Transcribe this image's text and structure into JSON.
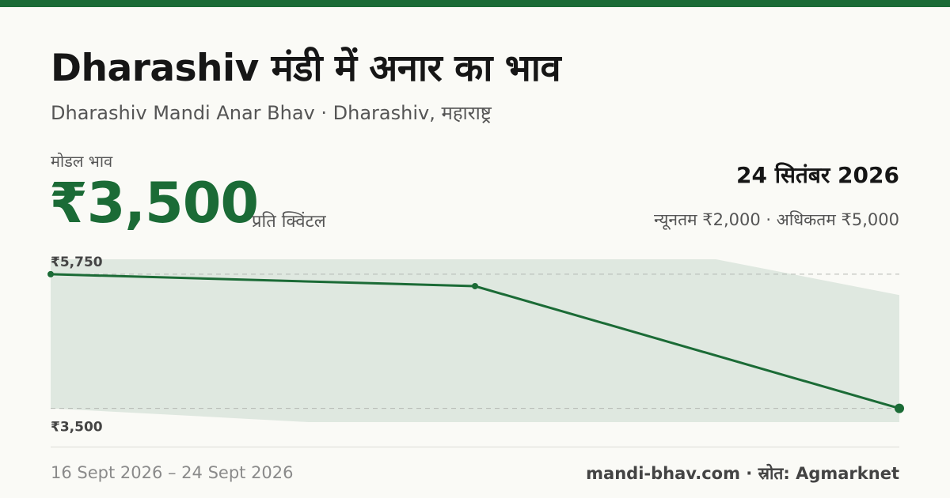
{
  "header": {
    "title": "Dharashiv मंडी में अनार का भाव",
    "subtitle": "Dharashiv Mandi Anar Bhav · Dharashiv, महाराष्ट्र"
  },
  "price": {
    "label": "मोडल भाव",
    "value": "₹3,500",
    "unit": "प्रति क्विंटल"
  },
  "date_info": {
    "date": "24 सितंबर 2026",
    "minmax": "न्यूनतम ₹2,000 · अधिकतम ₹5,000"
  },
  "footer": {
    "date_range": "16 Sept 2026 – 24 Sept 2026",
    "credit": "mandi-bhav.com · स्रोत: Agmarknet"
  },
  "colors": {
    "accent": "#1b6b36",
    "band": "#dfe8e0",
    "background": "#fafaf6"
  },
  "chart_data": {
    "type": "line",
    "x": [
      "16 Sept 2026",
      "20 Sept 2026",
      "24 Sept 2026"
    ],
    "x_index": [
      0,
      4,
      8
    ],
    "series": [
      {
        "values": [
          5750,
          5550,
          3500
        ]
      }
    ],
    "band": {
      "upper": [
        {
          "x": 0,
          "y": 6000
        },
        {
          "x": 6.27,
          "y": 6000
        },
        {
          "x": 8,
          "y": 5400
        }
      ],
      "lower": [
        {
          "x": 8,
          "y": 3270
        },
        {
          "x": 2.43,
          "y": 3270
        },
        {
          "x": 0,
          "y": 3500
        }
      ]
    },
    "yticks": [
      5750,
      3500
    ],
    "ytick_labels": [
      "₹5,750",
      "₹3,500"
    ],
    "ylim": [
      3270,
      6000
    ],
    "xlim": [
      0,
      8
    ],
    "grid": "dashed at ticks"
  }
}
